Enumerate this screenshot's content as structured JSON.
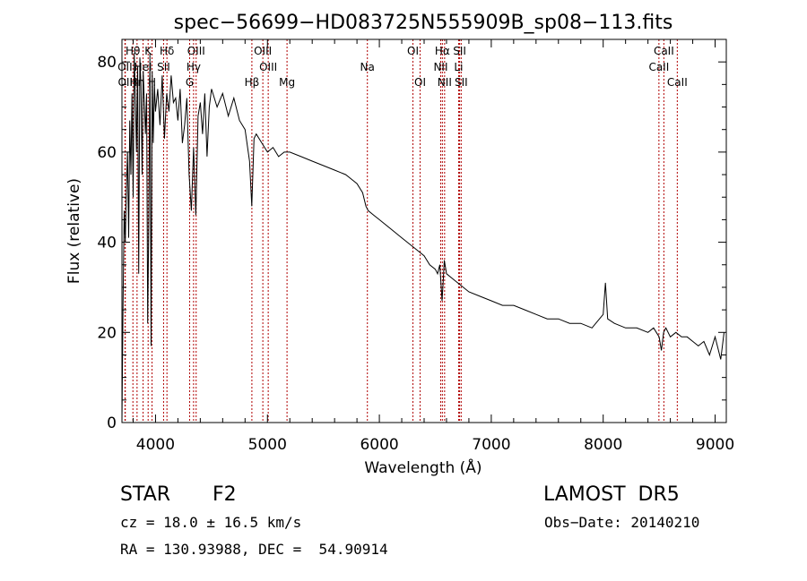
{
  "chart_data": {
    "type": "line",
    "title": "spec−56699−HD083725N555909B_sp08−113.fits",
    "xlabel": "Wavelength (Å)",
    "ylabel": "Flux (relative)",
    "xlim": [
      3700,
      9100
    ],
    "ylim": [
      0,
      85
    ],
    "xticks": [
      4000,
      5000,
      6000,
      7000,
      8000,
      9000
    ],
    "yticks": [
      0,
      20,
      40,
      60,
      80
    ],
    "grid": false,
    "series": [
      {
        "x": [
          3700,
          3710,
          3720,
          3730,
          3740,
          3750,
          3760,
          3770,
          3780,
          3790,
          3800,
          3810,
          3820,
          3830,
          3840,
          3850,
          3860,
          3870,
          3880,
          3890,
          3900,
          3910,
          3920,
          3930,
          3940,
          3950,
          3960,
          3970,
          3980,
          3990,
          4000,
          4020,
          4040,
          4060,
          4080,
          4100,
          4120,
          4140,
          4160,
          4180,
          4200,
          4220,
          4240,
          4260,
          4280,
          4300,
          4320,
          4340,
          4360,
          4380,
          4400,
          4420,
          4440,
          4460,
          4480,
          4500,
          4550,
          4600,
          4650,
          4700,
          4750,
          4800,
          4840,
          4860,
          4880,
          4900,
          4950,
          5000,
          5050,
          5100,
          5150,
          5200,
          5300,
          5400,
          5500,
          5600,
          5700,
          5750,
          5800,
          5850,
          5880,
          5900,
          5950,
          6000,
          6100,
          6200,
          6300,
          6400,
          6450,
          6500,
          6520,
          6540,
          6560,
          6570,
          6580,
          6600,
          6650,
          6700,
          6800,
          6900,
          7000,
          7100,
          7200,
          7300,
          7400,
          7500,
          7600,
          7700,
          7800,
          7900,
          8000,
          8020,
          8040,
          8100,
          8200,
          8300,
          8400,
          8450,
          8500,
          8520,
          8540,
          8560,
          8600,
          8650,
          8700,
          8750,
          8800,
          8850,
          8900,
          8950,
          9000,
          9050,
          9080
        ],
        "values": [
          0,
          26,
          47,
          40,
          52,
          60,
          41,
          67,
          55,
          73,
          50,
          82,
          72,
          60,
          79,
          33,
          81,
          75,
          55,
          78,
          71,
          64,
          73,
          22,
          46,
          82,
          17,
          78,
          62,
          75,
          69,
          74,
          66,
          77,
          63,
          73,
          69,
          77,
          71,
          72,
          67,
          74,
          62,
          66,
          72,
          55,
          47,
          61,
          46,
          68,
          71,
          64,
          73,
          59,
          70,
          74,
          70,
          73,
          68,
          72,
          67,
          65,
          58,
          48,
          63,
          64,
          62,
          60,
          61,
          59,
          60,
          60,
          59,
          58,
          57,
          56,
          55,
          54,
          53,
          51,
          48,
          47,
          46,
          45,
          43,
          41,
          39,
          37,
          35,
          34,
          33,
          35,
          27,
          31,
          36,
          33,
          32,
          31,
          29,
          28,
          27,
          26,
          26,
          25,
          24,
          23,
          23,
          22,
          22,
          21,
          24,
          31,
          23,
          22,
          21,
          21,
          20,
          21,
          19,
          16,
          20,
          21,
          19,
          20,
          19,
          19,
          18,
          17,
          18,
          15,
          19,
          14,
          20
        ]
      }
    ],
    "lines": [
      {
        "label": "Hθ",
        "x": 3798,
        "row": 1
      },
      {
        "label": "K",
        "x": 3934,
        "row": 1
      },
      {
        "label": "Hδ",
        "x": 4102,
        "row": 1
      },
      {
        "label": "OIII",
        "x": 4363,
        "row": 1
      },
      {
        "label": "OIII",
        "x": 4959,
        "row": 1
      },
      {
        "label": "OI",
        "x": 6300,
        "row": 1
      },
      {
        "label": "Hα",
        "x": 6563,
        "row": 1
      },
      {
        "label": "SII",
        "x": 6717,
        "row": 1
      },
      {
        "label": "CaII",
        "x": 8542,
        "row": 1
      },
      {
        "label": "OII",
        "x": 3727,
        "row": 2
      },
      {
        "label": "HeI",
        "x": 3889,
        "row": 2
      },
      {
        "label": "SII",
        "x": 4072,
        "row": 2
      },
      {
        "label": "Hγ",
        "x": 4340,
        "row": 2
      },
      {
        "label": "OIII",
        "x": 5007,
        "row": 2
      },
      {
        "label": "Na",
        "x": 5893,
        "row": 2
      },
      {
        "label": "NII",
        "x": 6548,
        "row": 2
      },
      {
        "label": "Li",
        "x": 6708,
        "row": 2
      },
      {
        "label": "CaII",
        "x": 8498,
        "row": 2
      },
      {
        "label": "OII",
        "x": 3730,
        "row": 3
      },
      {
        "label": "Hη",
        "x": 3835,
        "row": 3
      },
      {
        "label": "H",
        "x": 3969,
        "row": 3
      },
      {
        "label": "G",
        "x": 4305,
        "row": 3
      },
      {
        "label": "Hβ",
        "x": 4861,
        "row": 3
      },
      {
        "label": "Mg",
        "x": 5175,
        "row": 3
      },
      {
        "label": "OI",
        "x": 6364,
        "row": 3
      },
      {
        "label": "NII",
        "x": 6583,
        "row": 3
      },
      {
        "label": "SII",
        "x": 6731,
        "row": 3
      },
      {
        "label": "CaII",
        "x": 8662,
        "row": 3
      }
    ],
    "line_color": "#b00000"
  },
  "info": {
    "object_class": "STAR",
    "subclass": "F2",
    "survey": "LAMOST  DR5",
    "cz": "cz = 18.0 ± 16.5 km/s",
    "obs_date": "Obs−Date: 20140210",
    "coords": "RA = 130.93988, DEC =  54.90914"
  }
}
